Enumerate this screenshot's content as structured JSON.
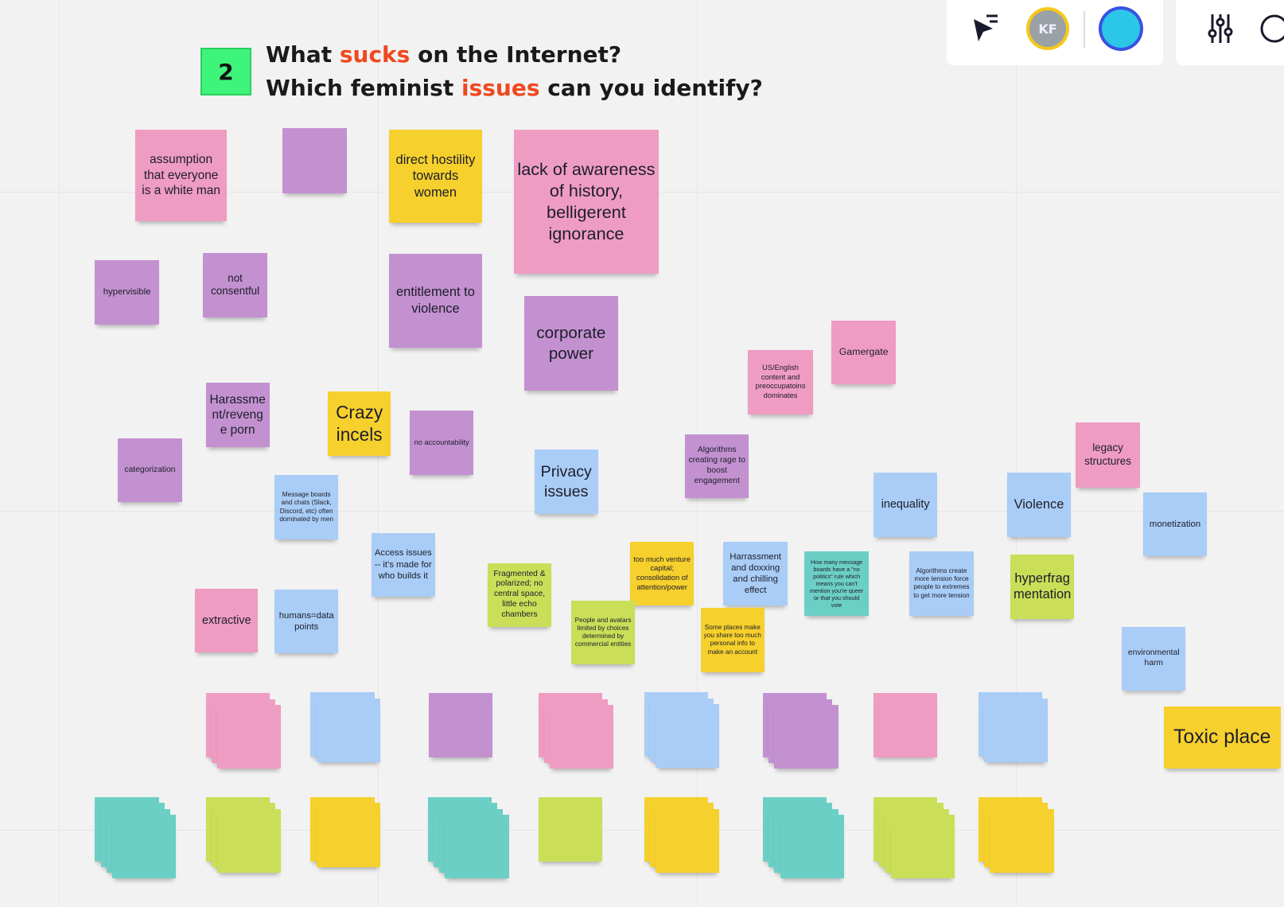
{
  "header": {
    "badge": "2",
    "line1": [
      "What",
      "sucks",
      "on the Internet?"
    ],
    "line2": [
      "Which feminist",
      "issues",
      "can you identify?"
    ],
    "accent_color": "#f0481e"
  },
  "toolbar": {
    "avatar": "KF"
  },
  "notes": [
    {
      "text": "assumption that everyone is a white man",
      "color": "#ef9cc3"
    },
    {
      "text": "direct hostility towards women",
      "color": "#f6d02c"
    },
    {
      "text": "lack of awareness of history, belligerent ignorance",
      "color": "#ef9cc3"
    },
    {
      "text": "hypervisible",
      "color": "#c391d0"
    },
    {
      "text": "not consentful",
      "color": "#c391d0"
    },
    {
      "text": "entitlement to violence",
      "color": "#c391d0"
    },
    {
      "text": "corporate power",
      "color": "#c391d0"
    },
    {
      "text": "US/English content and preoccupatoins dominates",
      "color": "#ef9cc3"
    },
    {
      "text": "Gamergate",
      "color": "#ef9cc3"
    },
    {
      "text": "Harassment/revenge porn",
      "color": "#c391d0"
    },
    {
      "text": "Crazy incels",
      "color": "#f6d02c"
    },
    {
      "text": "no accountability",
      "color": "#c391d0"
    },
    {
      "text": "categorization",
      "color": "#c391d0"
    },
    {
      "text": "Privacy issues",
      "color": "#a9cdf6"
    },
    {
      "text": "Algorithms creating rage to boost engagement",
      "color": "#c391d0"
    },
    {
      "text": "legacy structures",
      "color": "#ef9cc3"
    },
    {
      "text": "Message boards and chats (Slack, Discord, etc) often dominated by men",
      "color": "#a9cdf6"
    },
    {
      "text": "inequality",
      "color": "#a9cdf6"
    },
    {
      "text": "Violence",
      "color": "#a9cdf6"
    },
    {
      "text": "monetization",
      "color": "#a9cdf6"
    },
    {
      "text": "Access issues -- it's made for who builds it",
      "color": "#a9cdf6"
    },
    {
      "text": "Fragmented & polarized; no central space, little echo chambers",
      "color": "#cade58"
    },
    {
      "text": "too much venture capital; consolidation of attention/power",
      "color": "#f6d02c"
    },
    {
      "text": "Harrassment and doxxing and chilling effect",
      "color": "#a9cdf6"
    },
    {
      "text": "How many message boards have a \"no politics\" rule which means you can't mention you're queer or that you should vote",
      "color": "#6ccfc5"
    },
    {
      "text": "Algorithms create more tension force people to extremes to get more tension",
      "color": "#a9cdf6"
    },
    {
      "text": "hyperfragmentation",
      "color": "#cade58"
    },
    {
      "text": "extractive",
      "color": "#ef9cc3"
    },
    {
      "text": "humans=data points",
      "color": "#a9cdf6"
    },
    {
      "text": "People and avatars limited by choices determined by commercial entities",
      "color": "#cade58"
    },
    {
      "text": "Some places make you share too much personal info to make an account",
      "color": "#f6d02c"
    },
    {
      "text": "environmental harm",
      "color": "#a9cdf6"
    },
    {
      "text": "Toxic place",
      "color": "#f6d02c"
    }
  ]
}
